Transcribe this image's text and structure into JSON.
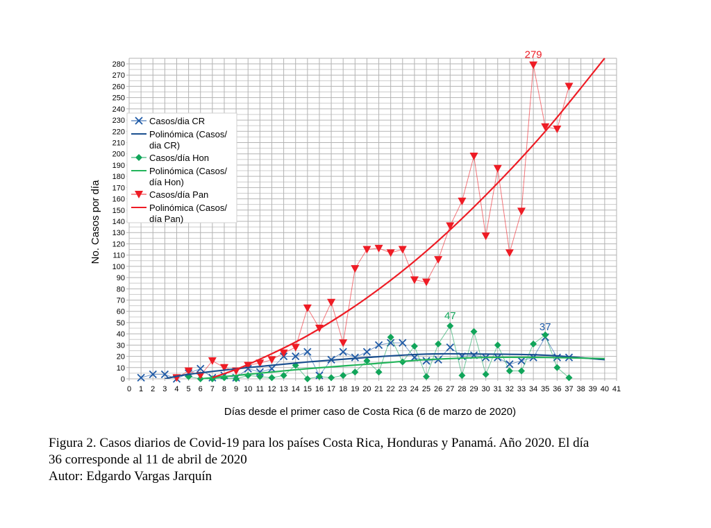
{
  "chart_data": {
    "type": "line",
    "xlabel": "Días desde el primer caso de Costa Rica (6 de marzo de 2020)",
    "ylabel": "No. Casos por día",
    "xlim": [
      0,
      41
    ],
    "ylim": [
      0,
      280
    ],
    "xticks": [
      0,
      1,
      2,
      3,
      4,
      5,
      6,
      7,
      8,
      9,
      10,
      11,
      12,
      13,
      14,
      15,
      16,
      17,
      18,
      19,
      20,
      21,
      22,
      23,
      24,
      25,
      26,
      27,
      28,
      29,
      30,
      31,
      32,
      33,
      34,
      35,
      36,
      37,
      38,
      39,
      40,
      41
    ],
    "yticks": [
      0,
      10,
      20,
      30,
      40,
      50,
      60,
      70,
      80,
      90,
      100,
      110,
      120,
      130,
      140,
      150,
      160,
      170,
      180,
      190,
      200,
      210,
      220,
      230,
      240,
      250,
      260,
      270,
      280
    ],
    "grid": true,
    "legend_position": "left",
    "series": [
      {
        "name": "Casos/dia CR",
        "legend": [
          "Casos/dia CR"
        ],
        "color": "#1f5aa6",
        "marker": "x",
        "x": [
          1,
          2,
          3,
          4,
          5,
          6,
          7,
          8,
          9,
          10,
          11,
          12,
          13,
          14,
          15,
          16,
          17,
          18,
          19,
          20,
          21,
          22,
          23,
          24,
          25,
          26,
          27,
          28,
          29,
          30,
          31,
          32,
          33,
          34,
          35,
          36,
          37
        ],
        "y": [
          1,
          4,
          4,
          0,
          5,
          9,
          1,
          3,
          1,
          9,
          6,
          9,
          20,
          20,
          24,
          3,
          17,
          24,
          19,
          24,
          30,
          32,
          32,
          19,
          16,
          17,
          28,
          20,
          21,
          19,
          19,
          13,
          16,
          19,
          37,
          19,
          19
        ],
        "label": {
          "x": 35,
          "y": 37,
          "text": "37"
        }
      },
      {
        "name": "Polinómica (Casos/dia CR)",
        "legend": [
          "Polinómica (Casos/",
          "dia CR)"
        ],
        "color": "#1a4f8f",
        "trend": true,
        "x": [
          3,
          5,
          10,
          15,
          20,
          25,
          30,
          35,
          40
        ],
        "y": [
          0,
          4,
          10,
          15,
          19,
          22,
          22,
          21,
          17
        ]
      },
      {
        "name": "Casos/día Hon",
        "legend": [
          "Casos/día Hon"
        ],
        "color": "#11a55a",
        "marker": "diamond",
        "x": [
          5,
          6,
          7,
          8,
          9,
          10,
          11,
          12,
          13,
          14,
          15,
          16,
          17,
          18,
          19,
          20,
          21,
          22,
          23,
          24,
          25,
          26,
          27,
          28,
          29,
          30,
          31,
          32,
          33,
          34,
          35,
          36,
          37
        ],
        "y": [
          2,
          0,
          0,
          1,
          0,
          3,
          2,
          1,
          3,
          12,
          0,
          2,
          1,
          3,
          6,
          16,
          6,
          37,
          15,
          29,
          2,
          31,
          47,
          3,
          42,
          4,
          30,
          7,
          7,
          31,
          39,
          10,
          1
        ],
        "label": {
          "x": 27,
          "y": 47,
          "text": "47"
        }
      },
      {
        "name": "Polinómica (Casos/día Hon)",
        "legend": [
          "Polinómica (Casos/",
          "día Hon)"
        ],
        "color": "#22b45a",
        "trend": true,
        "x": [
          6,
          10,
          15,
          20,
          25,
          30,
          35,
          40
        ],
        "y": [
          0,
          4,
          9,
          13,
          17,
          19,
          19,
          18
        ]
      },
      {
        "name": "Casos/día Pan",
        "legend": [
          "Casos/día Pan"
        ],
        "color": "#ee1c25",
        "marker": "triangle-down",
        "x": [
          4,
          5,
          6,
          7,
          8,
          9,
          10,
          11,
          12,
          13,
          14,
          15,
          16,
          17,
          18,
          19,
          20,
          21,
          22,
          23,
          24,
          25,
          26,
          27,
          28,
          29,
          30,
          31,
          32,
          33,
          34,
          35,
          36,
          37
        ],
        "y": [
          1,
          7,
          3,
          16,
          10,
          7,
          12,
          14,
          17,
          23,
          28,
          63,
          45,
          68,
          32,
          98,
          115,
          116,
          112,
          115,
          88,
          86,
          106,
          136,
          158,
          198,
          127,
          187,
          112,
          149,
          279,
          224,
          222,
          260
        ],
        "label": {
          "x": 34,
          "y": 279,
          "text": "279"
        }
      },
      {
        "name": "Polinómica (Casos/día Pan)",
        "legend": [
          "Polinómica (Casos/",
          "día Pan)"
        ],
        "color": "#ee1c25",
        "trend": true,
        "x": [
          7,
          10,
          15,
          20,
          25,
          30,
          35,
          40
        ],
        "y": [
          1,
          12.7,
          38.4,
          72,
          113.5,
          163.3,
          220,
          285
        ]
      }
    ]
  },
  "caption": {
    "line1": "Figura 2. Casos diarios de Covid-19 para los países Costa Rica, Honduras y Panamá. Año 2020. El día",
    "line2": "36 corresponde al 11 de abril de 2020",
    "line3": "Autor: Edgardo Vargas Jarquín"
  }
}
